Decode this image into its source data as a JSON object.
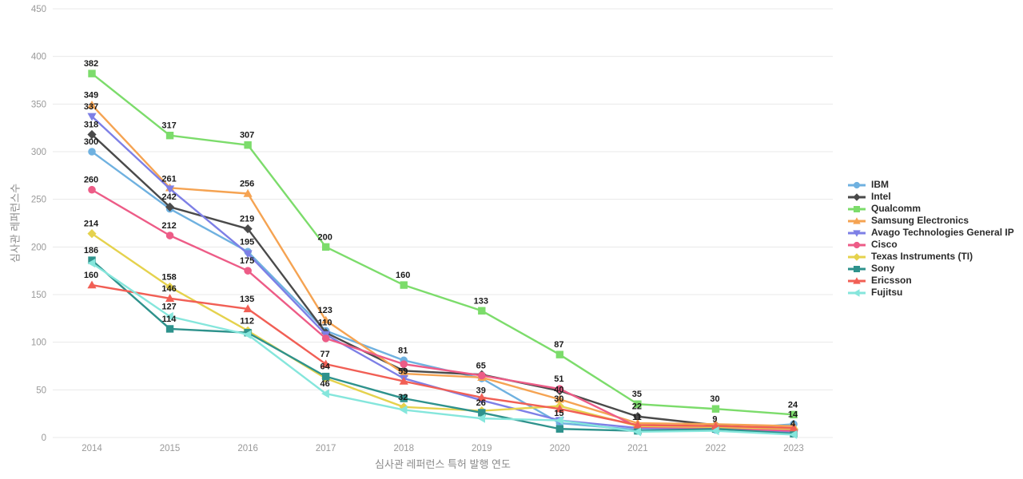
{
  "chart_data": {
    "type": "line",
    "title": "",
    "xlabel": "심사관 레퍼런스 특허 발행 연도",
    "ylabel": "심사관 레퍼런스수",
    "categories": [
      "2014",
      "2015",
      "2016",
      "2017",
      "2018",
      "2019",
      "2020",
      "2021",
      "2022",
      "2023"
    ],
    "y_ticks": [
      0,
      50,
      100,
      150,
      200,
      250,
      300,
      350,
      400,
      450
    ],
    "ylim": [
      0,
      450
    ],
    "grid": "horizontal",
    "legend_position": "right-middle",
    "series": [
      {
        "name": "IBM",
        "color": "#6FB1E0",
        "marker": "circle",
        "values": [
          300,
          240,
          195,
          112,
          81,
          62,
          15,
          8,
          8,
          14
        ],
        "labeled": [
          1,
          0,
          1,
          0,
          1,
          0,
          1,
          0,
          0,
          1
        ]
      },
      {
        "name": "Intel",
        "color": "#4A4A4A",
        "marker": "diamond",
        "values": [
          318,
          242,
          219,
          110,
          70,
          66,
          49,
          22,
          13,
          8
        ],
        "labeled": [
          1,
          1,
          1,
          1,
          0,
          0,
          0,
          1,
          0,
          0
        ]
      },
      {
        "name": "Qualcomm",
        "color": "#7CDC6B",
        "marker": "square",
        "values": [
          382,
          317,
          307,
          200,
          160,
          133,
          87,
          35,
          30,
          24
        ],
        "labeled": [
          1,
          1,
          1,
          1,
          1,
          1,
          1,
          1,
          1,
          1
        ]
      },
      {
        "name": "Samsung Electronics",
        "color": "#F5A352",
        "marker": "triangle-up",
        "values": [
          349,
          262,
          256,
          123,
          67,
          63,
          40,
          15,
          14,
          12
        ],
        "labeled": [
          1,
          0,
          1,
          1,
          0,
          0,
          1,
          0,
          0,
          0
        ]
      },
      {
        "name": "Avago Technologies General IP",
        "color": "#7D7FE6",
        "marker": "triangle-down",
        "values": [
          337,
          261,
          193,
          108,
          62,
          39,
          18,
          10,
          9,
          6
        ],
        "labeled": [
          1,
          1,
          0,
          0,
          0,
          1,
          0,
          0,
          0,
          0
        ]
      },
      {
        "name": "Cisco",
        "color": "#ED5C87",
        "marker": "circle",
        "values": [
          260,
          212,
          175,
          104,
          77,
          65,
          51,
          11,
          10,
          7
        ],
        "labeled": [
          1,
          1,
          1,
          0,
          0,
          1,
          1,
          1,
          0,
          0
        ]
      },
      {
        "name": "Texas Instruments (TI)",
        "color": "#E5D24D",
        "marker": "diamond",
        "values": [
          214,
          158,
          112,
          62,
          32,
          28,
          33,
          12,
          11,
          9
        ],
        "labeled": [
          1,
          1,
          1,
          0,
          1,
          0,
          0,
          0,
          0,
          0
        ]
      },
      {
        "name": "Sony",
        "color": "#2E928C",
        "marker": "square",
        "values": [
          186,
          114,
          110,
          64,
          41,
          26,
          9,
          7,
          9,
          4
        ],
        "labeled": [
          1,
          1,
          0,
          1,
          0,
          1,
          0,
          0,
          1,
          1
        ]
      },
      {
        "name": "Ericsson",
        "color": "#F15F55",
        "marker": "triangle-up",
        "values": [
          160,
          146,
          135,
          77,
          59,
          42,
          30,
          13,
          12,
          10
        ],
        "labeled": [
          1,
          1,
          1,
          1,
          1,
          0,
          1,
          0,
          0,
          0
        ]
      },
      {
        "name": "Fujitsu",
        "color": "#85E6DC",
        "marker": "triangle-left",
        "values": [
          183,
          127,
          108,
          46,
          29,
          20,
          18,
          6,
          7,
          3
        ],
        "labeled": [
          0,
          1,
          0,
          1,
          0,
          0,
          0,
          0,
          0,
          0
        ]
      }
    ]
  }
}
